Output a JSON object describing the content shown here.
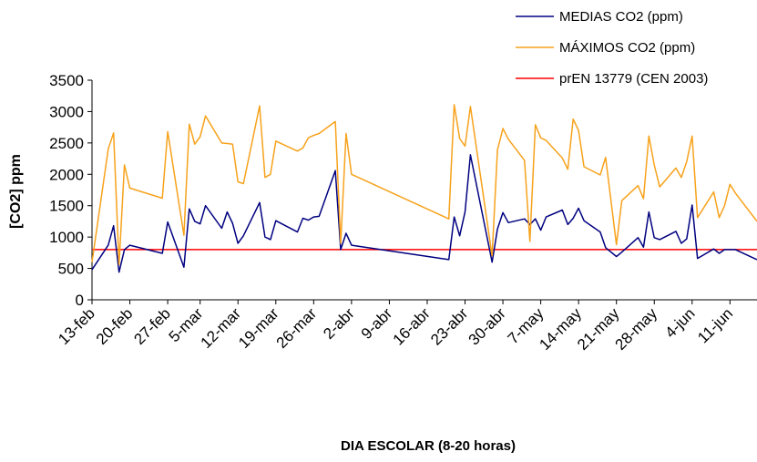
{
  "chart_data": {
    "type": "line",
    "x_label": "DIA ESCOLAR (8-20 horas)",
    "y_label": "[CO2] ppm",
    "x": [
      "02-13",
      "02-16",
      "02-17",
      "02-18",
      "02-19",
      "02-20",
      "02-26",
      "02-27",
      "03-02",
      "03-03",
      "03-04",
      "03-05",
      "03-06",
      "03-09",
      "03-10",
      "03-11",
      "03-12",
      "03-13",
      "03-16",
      "03-17",
      "03-18",
      "03-19",
      "03-23",
      "03-24",
      "03-25",
      "03-26",
      "03-27",
      "03-30",
      "03-31",
      "04-01",
      "04-02",
      "04-20",
      "04-21",
      "04-22",
      "04-23",
      "04-24",
      "04-28",
      "04-29",
      "04-30",
      "05-01",
      "05-04",
      "05-05",
      "05-06",
      "05-07",
      "05-08",
      "05-11",
      "05-12",
      "05-13",
      "05-14",
      "05-15",
      "05-18",
      "05-19",
      "05-21",
      "05-22",
      "05-25",
      "05-26",
      "05-27",
      "05-28",
      "05-29",
      "06-01",
      "06-02",
      "06-03",
      "06-04",
      "06-05",
      "06-08",
      "06-09",
      "06-10",
      "06-11",
      "06-12",
      "06-16"
    ],
    "series": [
      {
        "name": "MEDIAS CO2 (ppm)",
        "color": "#000080",
        "values": [
          480,
          870,
          1180,
          440,
          800,
          870,
          740,
          1240,
          520,
          1450,
          1250,
          1210,
          1500,
          1140,
          1400,
          1220,
          900,
          1020,
          1550,
          1000,
          960,
          1260,
          1080,
          1300,
          1270,
          1320,
          1330,
          2060,
          800,
          1060,
          870,
          640,
          1320,
          1020,
          1400,
          2310,
          600,
          1130,
          1390,
          1230,
          1290,
          1200,
          1290,
          1110,
          1320,
          1430,
          1200,
          1300,
          1460,
          1260,
          1080,
          830,
          690,
          760,
          990,
          840,
          1400,
          990,
          960,
          1090,
          900,
          970,
          1510,
          660,
          810,
          740,
          800,
          800,
          800,
          640
        ]
      },
      {
        "name": "MÁXIMOS CO2 (ppm)",
        "color": "#f7a21b",
        "values": [
          600,
          2400,
          2660,
          560,
          2150,
          1780,
          1620,
          2680,
          1030,
          2800,
          2480,
          2600,
          2930,
          2500,
          2490,
          2480,
          1880,
          1850,
          3090,
          1950,
          2000,
          2530,
          2370,
          2420,
          2580,
          2620,
          2650,
          2840,
          900,
          2650,
          2000,
          1290,
          3110,
          2570,
          2450,
          3080,
          700,
          2390,
          2730,
          2560,
          2220,
          930,
          2790,
          2580,
          2540,
          2260,
          2080,
          2880,
          2700,
          2120,
          1990,
          2270,
          880,
          1580,
          1820,
          1610,
          2610,
          2150,
          1800,
          2100,
          1950,
          2200,
          2610,
          1310,
          1720,
          1310,
          1500,
          1840,
          1700,
          1250
        ]
      }
    ],
    "reference_line": {
      "name": "prEN 13779 (CEN 2003)",
      "color": "#ff0000",
      "value": 800
    },
    "xlim": [
      "02-13",
      "06-16"
    ],
    "xticks": [
      {
        "value": "02-13",
        "label": "13-feb"
      },
      {
        "value": "02-20",
        "label": "20-feb"
      },
      {
        "value": "02-27",
        "label": "27-feb"
      },
      {
        "value": "03-05",
        "label": "5-mar"
      },
      {
        "value": "03-12",
        "label": "12-mar"
      },
      {
        "value": "03-19",
        "label": "19-mar"
      },
      {
        "value": "03-26",
        "label": "26-mar"
      },
      {
        "value": "04-02",
        "label": "2-abr"
      },
      {
        "value": "04-09",
        "label": "9-abr"
      },
      {
        "value": "04-16",
        "label": "16-abr"
      },
      {
        "value": "04-23",
        "label": "23-abr"
      },
      {
        "value": "04-30",
        "label": "30-abr"
      },
      {
        "value": "05-07",
        "label": "7-may"
      },
      {
        "value": "05-14",
        "label": "14-may"
      },
      {
        "value": "05-21",
        "label": "21-may"
      },
      {
        "value": "05-28",
        "label": "28-may"
      },
      {
        "value": "06-04",
        "label": "4-jun"
      },
      {
        "value": "06-11",
        "label": "11-jun"
      }
    ],
    "ylim": [
      0,
      3500
    ],
    "yticks": [
      0,
      500,
      1000,
      1500,
      2000,
      2500,
      3000,
      3500
    ],
    "grid": false,
    "legend": "top-right"
  }
}
